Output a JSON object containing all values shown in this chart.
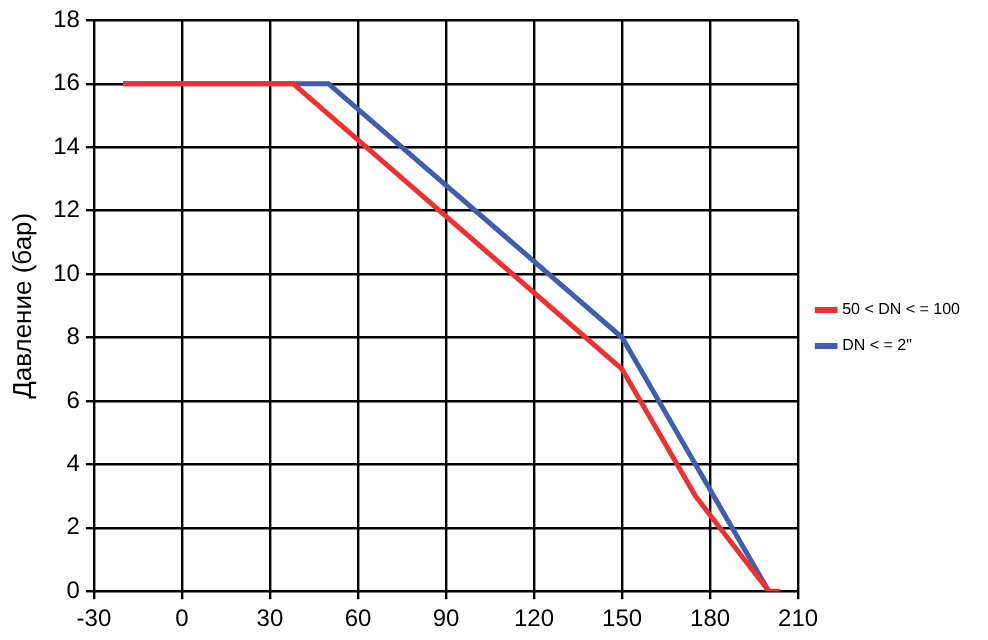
{
  "chart_data": {
    "type": "line",
    "ylabel": "Давление (бар)",
    "series": [
      {
        "name": "DN < = 2\"",
        "color": "#3f5fae",
        "x": [
          -20,
          50,
          150,
          200
        ],
        "values": [
          16,
          16,
          8,
          0
        ]
      },
      {
        "name": "50 < DN < = 100",
        "color": "#f03030",
        "x": [
          -20,
          38,
          150,
          175,
          200,
          204
        ],
        "values": [
          16,
          16,
          7,
          3,
          0,
          0
        ]
      }
    ],
    "xlim": [
      -30,
      210
    ],
    "xticks": [
      -30,
      0,
      30,
      60,
      90,
      120,
      150,
      180,
      210
    ],
    "ylim": [
      0,
      18
    ],
    "yticks": [
      0,
      2,
      4,
      6,
      8,
      10,
      12,
      14,
      16,
      18
    ],
    "grid": true,
    "legend": "right",
    "marker": "none",
    "line_style": "solid"
  }
}
